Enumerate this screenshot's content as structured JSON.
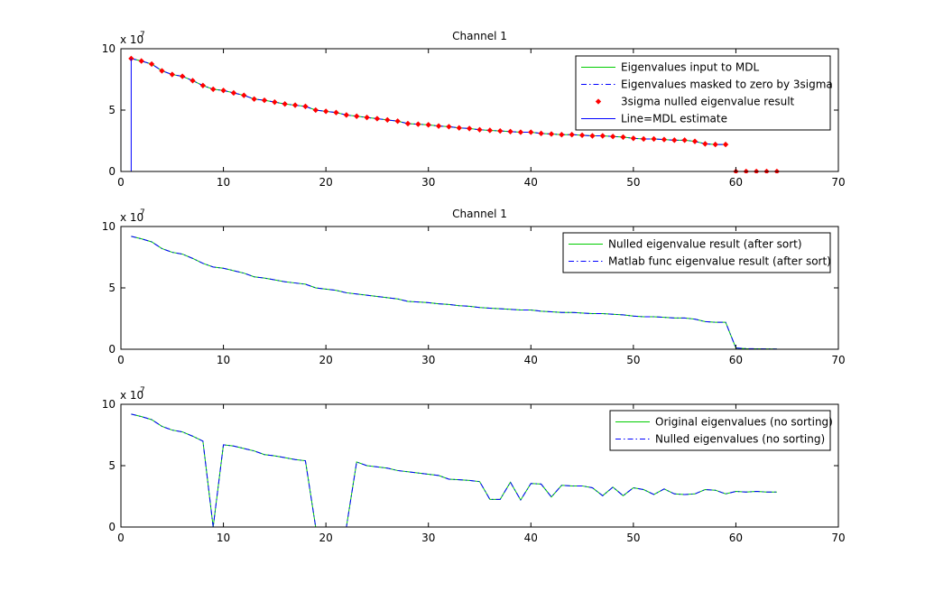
{
  "window": {},
  "chart_data": [
    {
      "type": "line",
      "title": "Channel 1",
      "xlim": [
        0,
        70
      ],
      "ylim": [
        0,
        100000000
      ],
      "xticks": [
        "0",
        "10",
        "20",
        "30",
        "40",
        "50",
        "60",
        "70"
      ],
      "yticks": [
        "0",
        "5",
        "10"
      ],
      "y_multiplier": "x 10",
      "y_multiplier_exp": "7",
      "legend_position": "top-right",
      "series": [
        {
          "name": "Eigenvalues input to MDL",
          "style": "solid",
          "color": "#00cc00",
          "x": [
            1,
            2,
            3,
            4,
            5,
            6,
            7,
            8,
            9,
            10,
            11,
            12,
            13,
            14,
            15,
            16,
            17,
            18,
            19,
            20,
            21,
            22,
            23,
            24,
            25,
            26,
            27,
            28,
            29,
            30,
            31,
            32,
            33,
            34,
            35,
            36,
            37,
            38,
            39,
            40,
            41,
            42,
            43,
            44,
            45,
            46,
            47,
            48,
            49,
            50,
            51,
            52,
            53,
            54,
            55,
            56,
            57,
            58,
            59
          ],
          "values": [
            92000000,
            90000000,
            87500000,
            82000000,
            79000000,
            77500000,
            74000000,
            70000000,
            67000000,
            66000000,
            64000000,
            62000000,
            59000000,
            58000000,
            56500000,
            55000000,
            54000000,
            53000000,
            50000000,
            49000000,
            48000000,
            46000000,
            45000000,
            44000000,
            43000000,
            42000000,
            41000000,
            39000000,
            38500000,
            38000000,
            37000000,
            36500000,
            35500000,
            35000000,
            34000000,
            33500000,
            33000000,
            32500000,
            32000000,
            32000000,
            31000000,
            30500000,
            30000000,
            30000000,
            29500000,
            29000000,
            29000000,
            28500000,
            28000000,
            27000000,
            26500000,
            26500000,
            26000000,
            25500000,
            25500000,
            24500000,
            22500000,
            22000000,
            22000000
          ]
        },
        {
          "name": "Eigenvalues masked to zero by 3sigma",
          "style": "dash-dot",
          "color": "#0000ff",
          "x": [
            1,
            2,
            3,
            4,
            5,
            6,
            7,
            8,
            9,
            10,
            11,
            12,
            13,
            14,
            15,
            16,
            17,
            18,
            19,
            20,
            21,
            22,
            23,
            24,
            25,
            26,
            27,
            28,
            29,
            30,
            31,
            32,
            33,
            34,
            35,
            36,
            37,
            38,
            39,
            40,
            41,
            42,
            43,
            44,
            45,
            46,
            47,
            48,
            49,
            50,
            51,
            52,
            53,
            54,
            55,
            56,
            57,
            58,
            59
          ],
          "values": [
            92000000,
            90000000,
            87500000,
            82000000,
            79000000,
            77500000,
            74000000,
            70000000,
            67000000,
            66000000,
            64000000,
            62000000,
            59000000,
            58000000,
            56500000,
            55000000,
            54000000,
            53000000,
            50000000,
            49000000,
            48000000,
            46000000,
            45000000,
            44000000,
            43000000,
            42000000,
            41000000,
            39000000,
            38500000,
            38000000,
            37000000,
            36500000,
            35500000,
            35000000,
            34000000,
            33500000,
            33000000,
            32500000,
            32000000,
            32000000,
            31000000,
            30500000,
            30000000,
            30000000,
            29500000,
            29000000,
            29000000,
            28500000,
            28000000,
            27000000,
            26500000,
            26500000,
            26000000,
            25500000,
            25500000,
            24500000,
            22500000,
            22000000,
            22000000
          ]
        },
        {
          "name": "3sigma nulled eigenvalue result",
          "style": "markers",
          "color": "#ff0000",
          "x": [
            1,
            2,
            3,
            4,
            5,
            6,
            7,
            8,
            9,
            10,
            11,
            12,
            13,
            14,
            15,
            16,
            17,
            18,
            19,
            20,
            21,
            22,
            23,
            24,
            25,
            26,
            27,
            28,
            29,
            30,
            31,
            32,
            33,
            34,
            35,
            36,
            37,
            38,
            39,
            40,
            41,
            42,
            43,
            44,
            45,
            46,
            47,
            48,
            49,
            50,
            51,
            52,
            53,
            54,
            55,
            56,
            57,
            58,
            59,
            60,
            61,
            62,
            63,
            64
          ],
          "values": [
            92000000,
            90000000,
            87500000,
            82000000,
            79000000,
            77500000,
            74000000,
            70000000,
            67000000,
            66000000,
            64000000,
            62000000,
            59000000,
            58000000,
            56500000,
            55000000,
            54000000,
            53000000,
            50000000,
            49000000,
            48000000,
            46000000,
            45000000,
            44000000,
            43000000,
            42000000,
            41000000,
            39000000,
            38500000,
            38000000,
            37000000,
            36500000,
            35500000,
            35000000,
            34000000,
            33500000,
            33000000,
            32500000,
            32000000,
            32000000,
            31000000,
            30500000,
            30000000,
            30000000,
            29500000,
            29000000,
            29000000,
            28500000,
            28000000,
            27000000,
            26500000,
            26500000,
            26000000,
            25500000,
            25500000,
            24500000,
            22500000,
            22000000,
            22000000,
            0,
            0,
            0,
            0,
            0
          ]
        },
        {
          "name": "Line=MDL estimate",
          "style": "solid",
          "color": "#0000ff",
          "x": [
            1,
            1
          ],
          "values": [
            0,
            92000000
          ]
        }
      ]
    },
    {
      "type": "line",
      "title": "Channel 1",
      "xlim": [
        0,
        70
      ],
      "ylim": [
        0,
        100000000
      ],
      "xticks": [
        "0",
        "10",
        "20",
        "30",
        "40",
        "50",
        "60",
        "70"
      ],
      "yticks": [
        "0",
        "5",
        "10"
      ],
      "y_multiplier": "x 10",
      "y_multiplier_exp": "7",
      "legend_position": "top-right",
      "series": [
        {
          "name": "Nulled eigenvalue result (after sort)",
          "style": "solid",
          "color": "#00cc00",
          "x": [
            1,
            2,
            3,
            4,
            5,
            6,
            7,
            8,
            9,
            10,
            11,
            12,
            13,
            14,
            15,
            16,
            17,
            18,
            19,
            20,
            21,
            22,
            23,
            24,
            25,
            26,
            27,
            28,
            29,
            30,
            31,
            32,
            33,
            34,
            35,
            36,
            37,
            38,
            39,
            40,
            41,
            42,
            43,
            44,
            45,
            46,
            47,
            48,
            49,
            50,
            51,
            52,
            53,
            54,
            55,
            56,
            57,
            58,
            59,
            60,
            61,
            62,
            63,
            64
          ],
          "values": [
            92000000,
            90000000,
            87500000,
            82000000,
            79000000,
            77500000,
            74000000,
            70000000,
            67000000,
            66000000,
            64000000,
            62000000,
            59000000,
            58000000,
            56500000,
            55000000,
            54000000,
            53000000,
            50000000,
            49000000,
            48000000,
            46000000,
            45000000,
            44000000,
            43000000,
            42000000,
            41000000,
            39000000,
            38500000,
            38000000,
            37000000,
            36500000,
            35500000,
            35000000,
            34000000,
            33500000,
            33000000,
            32500000,
            32000000,
            32000000,
            31000000,
            30500000,
            30000000,
            30000000,
            29500000,
            29000000,
            29000000,
            28500000,
            28000000,
            27000000,
            26500000,
            26500000,
            26000000,
            25500000,
            25500000,
            24500000,
            22500000,
            22000000,
            22000000,
            1000000,
            500000,
            400000,
            300000,
            200000
          ]
        },
        {
          "name": "Matlab func eigenvalue result (after sort)",
          "style": "dash-dot",
          "color": "#0000ff",
          "x": [
            1,
            2,
            3,
            4,
            5,
            6,
            7,
            8,
            9,
            10,
            11,
            12,
            13,
            14,
            15,
            16,
            17,
            18,
            19,
            20,
            21,
            22,
            23,
            24,
            25,
            26,
            27,
            28,
            29,
            30,
            31,
            32,
            33,
            34,
            35,
            36,
            37,
            38,
            39,
            40,
            41,
            42,
            43,
            44,
            45,
            46,
            47,
            48,
            49,
            50,
            51,
            52,
            53,
            54,
            55,
            56,
            57,
            58,
            59,
            60,
            61,
            62,
            63,
            64
          ],
          "values": [
            92000000,
            90000000,
            87500000,
            82000000,
            79000000,
            77500000,
            74000000,
            70000000,
            67000000,
            66000000,
            64000000,
            62000000,
            59000000,
            58000000,
            56500000,
            55000000,
            54000000,
            53000000,
            50000000,
            49000000,
            48000000,
            46000000,
            45000000,
            44000000,
            43000000,
            42000000,
            41000000,
            39000000,
            38500000,
            38000000,
            37000000,
            36500000,
            35500000,
            35000000,
            34000000,
            33500000,
            33000000,
            32500000,
            32000000,
            32000000,
            31000000,
            30500000,
            30000000,
            30000000,
            29500000,
            29000000,
            29000000,
            28500000,
            28000000,
            27000000,
            26500000,
            26500000,
            26000000,
            25500000,
            25500000,
            24500000,
            22500000,
            22000000,
            22000000,
            1000000,
            500000,
            400000,
            300000,
            200000
          ]
        }
      ]
    },
    {
      "type": "line",
      "title": "",
      "xlim": [
        0,
        70
      ],
      "ylim": [
        0,
        100000000
      ],
      "xticks": [
        "0",
        "10",
        "20",
        "30",
        "40",
        "50",
        "60",
        "70"
      ],
      "yticks": [
        "0",
        "5",
        "10"
      ],
      "y_multiplier": "x 10",
      "y_multiplier_exp": "7",
      "legend_position": "top-right",
      "series": [
        {
          "name": "Original eigenvalues (no sorting)",
          "style": "solid",
          "color": "#00cc00",
          "x": [
            1,
            2,
            3,
            4,
            5,
            6,
            7,
            8,
            9,
            10,
            11,
            12,
            13,
            14,
            15,
            16,
            17,
            18,
            19,
            20,
            21,
            22,
            23,
            24,
            25,
            26,
            27,
            28,
            29,
            30,
            31,
            32,
            33,
            34,
            35,
            36,
            37,
            38,
            39,
            40,
            41,
            42,
            43,
            44,
            45,
            46,
            47,
            48,
            49,
            50,
            51,
            52,
            53,
            54,
            55,
            56,
            57,
            58,
            59,
            60,
            61,
            62,
            63,
            64
          ],
          "values": [
            92000000,
            90000000,
            87500000,
            82000000,
            79000000,
            77500000,
            74000000,
            70000000,
            0,
            67000000,
            66000000,
            64000000,
            62000000,
            59000000,
            58000000,
            56500000,
            55000000,
            54000000,
            0,
            0,
            0,
            0,
            53000000,
            50000000,
            49000000,
            48000000,
            46000000,
            45000000,
            44000000,
            43000000,
            42000000,
            39000000,
            38500000,
            38000000,
            37000000,
            22500000,
            22500000,
            36500000,
            22000000,
            35500000,
            35000000,
            24500000,
            34000000,
            33500000,
            33500000,
            32000000,
            25500000,
            32500000,
            25500000,
            32000000,
            30500000,
            26500000,
            31000000,
            27000000,
            26500000,
            27000000,
            30500000,
            30000000,
            27000000,
            29000000,
            28500000,
            29000000,
            28500000,
            28500000
          ]
        },
        {
          "name": "Nulled eigenvalues (no sorting)",
          "style": "dash-dot",
          "color": "#0000ff",
          "x": [
            1,
            2,
            3,
            4,
            5,
            6,
            7,
            8,
            9,
            10,
            11,
            12,
            13,
            14,
            15,
            16,
            17,
            18,
            19,
            20,
            21,
            22,
            23,
            24,
            25,
            26,
            27,
            28,
            29,
            30,
            31,
            32,
            33,
            34,
            35,
            36,
            37,
            38,
            39,
            40,
            41,
            42,
            43,
            44,
            45,
            46,
            47,
            48,
            49,
            50,
            51,
            52,
            53,
            54,
            55,
            56,
            57,
            58,
            59,
            60,
            61,
            62,
            63,
            64
          ],
          "values": [
            92000000,
            90000000,
            87500000,
            82000000,
            79000000,
            77500000,
            74000000,
            70000000,
            0,
            67000000,
            66000000,
            64000000,
            62000000,
            59000000,
            58000000,
            56500000,
            55000000,
            54000000,
            0,
            0,
            0,
            0,
            53000000,
            50000000,
            49000000,
            48000000,
            46000000,
            45000000,
            44000000,
            43000000,
            42000000,
            39000000,
            38500000,
            38000000,
            37000000,
            22500000,
            22500000,
            36500000,
            22000000,
            35500000,
            35000000,
            24500000,
            34000000,
            33500000,
            33500000,
            32000000,
            25500000,
            32500000,
            25500000,
            32000000,
            30500000,
            26500000,
            31000000,
            27000000,
            26500000,
            27000000,
            30500000,
            30000000,
            27000000,
            29000000,
            28500000,
            29000000,
            28500000,
            28500000
          ]
        }
      ]
    }
  ]
}
